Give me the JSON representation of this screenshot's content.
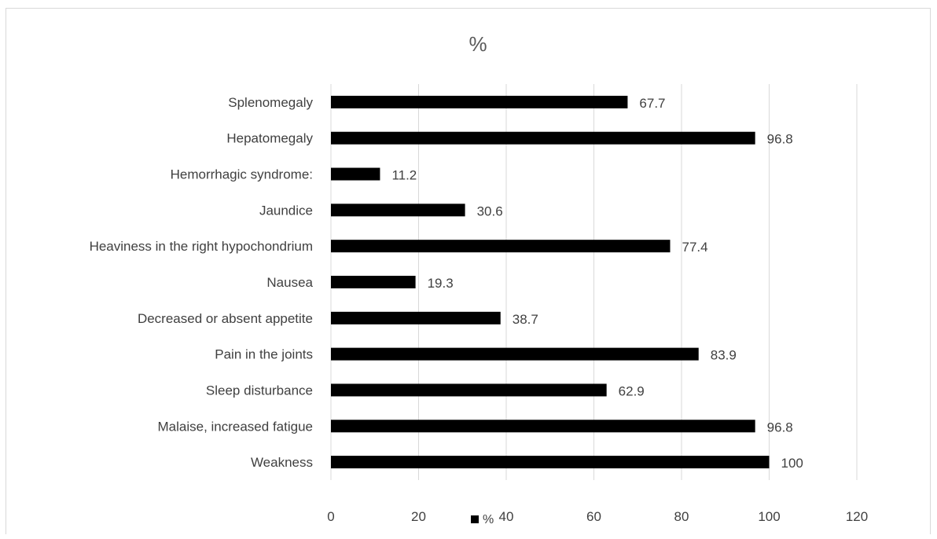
{
  "chart_data": {
    "type": "bar",
    "orientation": "horizontal",
    "title": "%",
    "categories": [
      "Splenomegaly",
      "Hepatomegaly",
      "Hemorrhagic syndrome:",
      "Jaundice",
      "Heaviness in the right hypochondrium",
      "Nausea",
      "Decreased or absent appetite",
      "Pain in the joints",
      "Sleep disturbance",
      "Malaise, increased fatigue",
      "Weakness"
    ],
    "series": [
      {
        "name": "%",
        "values": [
          67.7,
          96.8,
          11.2,
          30.6,
          77.4,
          19.3,
          38.7,
          83.9,
          62.9,
          96.8,
          100
        ],
        "labels": [
          "67.7",
          "96.8",
          "11.2",
          "30.6",
          "77.4",
          "19.3",
          "38.7",
          "83.9",
          "62.9",
          "96.8",
          "100"
        ],
        "color": "#000000"
      }
    ],
    "xlim": [
      0,
      120
    ],
    "x_ticks": [
      "0",
      "20",
      "40",
      "60",
      "80",
      "100",
      "120"
    ],
    "grid": true,
    "grid_color": "#d9d9d9",
    "legend": {
      "position": "bottom",
      "entries": [
        "%"
      ]
    },
    "xlabel": "",
    "ylabel": ""
  }
}
